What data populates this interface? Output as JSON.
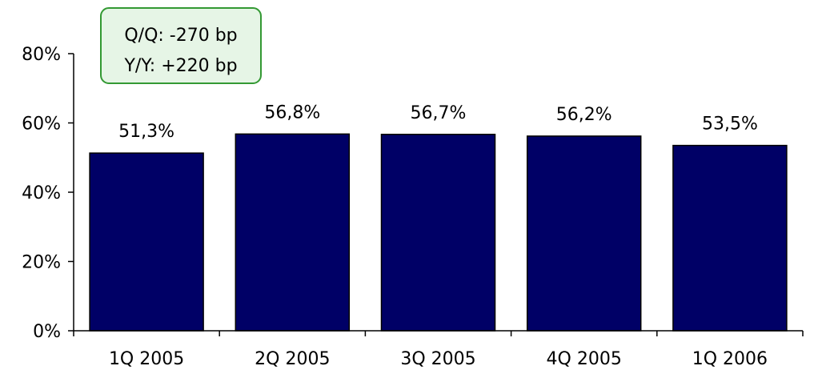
{
  "chart_data": {
    "type": "bar",
    "categories": [
      "1Q 2005",
      "2Q 2005",
      "3Q 2005",
      "4Q 2005",
      "1Q 2006"
    ],
    "values": [
      51.3,
      56.8,
      56.7,
      56.2,
      53.5
    ],
    "data_labels": [
      "51,3%",
      "56,8%",
      "56,7%",
      "56,2%",
      "53,5%"
    ],
    "y_ticks": [
      0,
      20,
      40,
      60,
      80
    ],
    "y_tick_labels": [
      "0%",
      "20%",
      "40%",
      "60%",
      "80%"
    ],
    "ylim": [
      0,
      80
    ],
    "grid": false,
    "bar_color": "#000066",
    "annotation": {
      "lines": [
        "Q/Q: -270 bp",
        "Y/Y: +220 bp"
      ],
      "border_color": "#339933",
      "fill_color": "#e6f5e6"
    },
    "title": "",
    "xlabel": "",
    "ylabel": ""
  }
}
